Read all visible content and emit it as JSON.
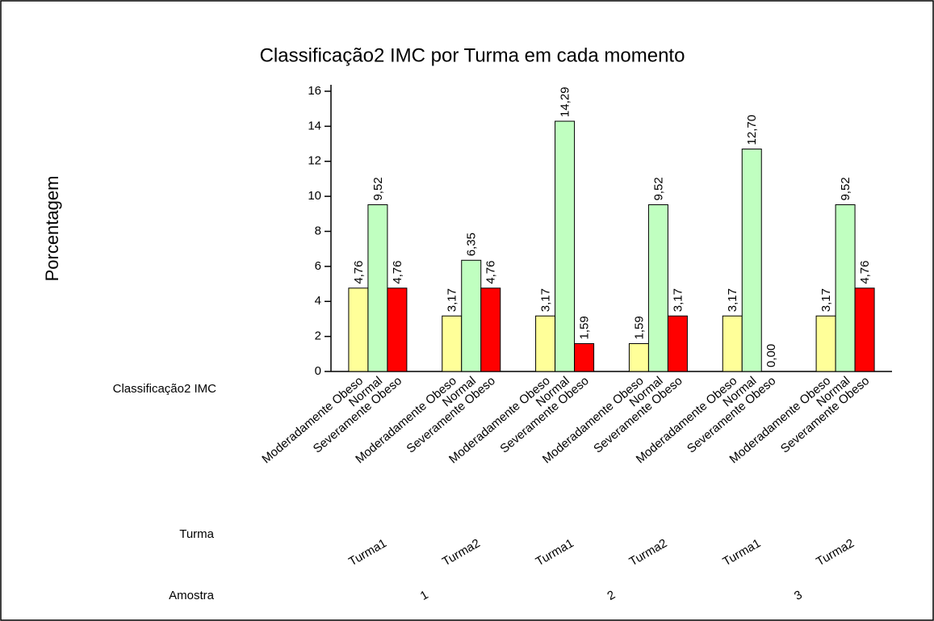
{
  "chart_data": {
    "type": "bar",
    "title": "Classificação2 IMC por Turma em cada momento",
    "y_label": "Porcentagem",
    "level_names": [
      "Classificação2 IMC",
      "Turma",
      "Amostra"
    ],
    "amostras": [
      {
        "label": "1",
        "turmas": [
          "Turma1",
          "Turma2"
        ]
      },
      {
        "label": "2",
        "turmas": [
          "Turma1",
          "Turma2"
        ]
      },
      {
        "label": "3",
        "turmas": [
          "Turma1",
          "Turma2"
        ]
      }
    ],
    "series": [
      {
        "name": "Moderadamente Obeso",
        "color": "#ffff99",
        "values": [
          4.76,
          3.17,
          3.17,
          1.59,
          3.17,
          3.17
        ],
        "value_labels": [
          "4,76",
          "3,17",
          "3,17",
          "1,59",
          "3,17",
          "3,17"
        ]
      },
      {
        "name": "Normal",
        "color": "#c0ffc0",
        "values": [
          9.52,
          6.35,
          14.29,
          9.52,
          12.7,
          9.52
        ],
        "value_labels": [
          "9,52",
          "6,35",
          "14,29",
          "9,52",
          "12,70",
          "9,52"
        ]
      },
      {
        "name": "Severamente Obeso",
        "color": "#ff0000",
        "values": [
          4.76,
          4.76,
          1.59,
          3.17,
          0.0,
          4.76
        ],
        "value_labels": [
          "4,76",
          "4,76",
          "1,59",
          "3,17",
          "0,00",
          "4,76"
        ]
      }
    ],
    "ylim": [
      0,
      16
    ],
    "yticks": [
      0,
      2,
      4,
      6,
      8,
      10,
      12,
      14,
      16
    ]
  }
}
